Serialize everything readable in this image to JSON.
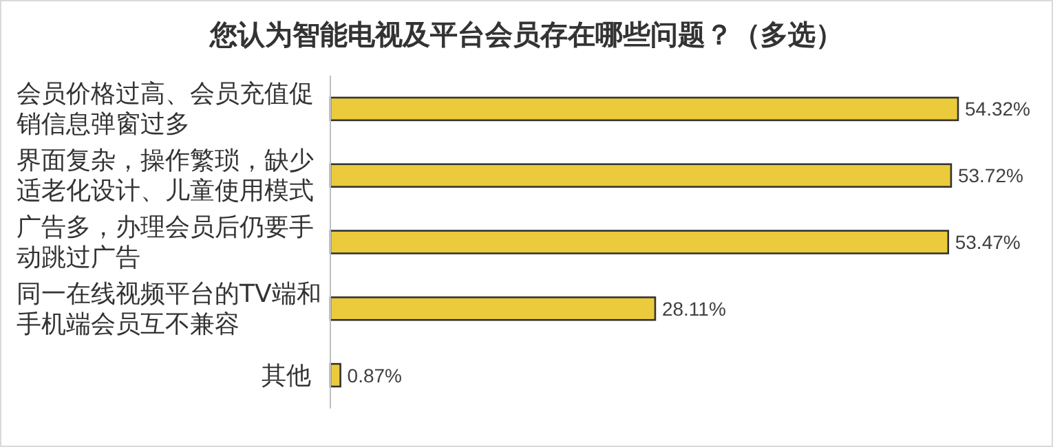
{
  "chart_data": {
    "type": "bar",
    "orientation": "horizontal",
    "title": "您认为智能电视及平台会员存在哪些问题？（多选）",
    "categories": [
      "会员价格过高、会员充值促销信息弹窗过多",
      "界面复杂，操作繁琐，缺少适老化设计、儿童使用模式",
      "广告多，办理会员后仍要手动跳过广告",
      "同一在线视频平台的TV端和手机端会员互不兼容",
      "其他"
    ],
    "values": [
      54.32,
      53.72,
      53.47,
      28.11,
      0.87
    ],
    "value_labels": [
      "54.32%",
      "53.72%",
      "53.47%",
      "28.11%",
      "0.87%"
    ],
    "color": "#ebcb3c"
  }
}
